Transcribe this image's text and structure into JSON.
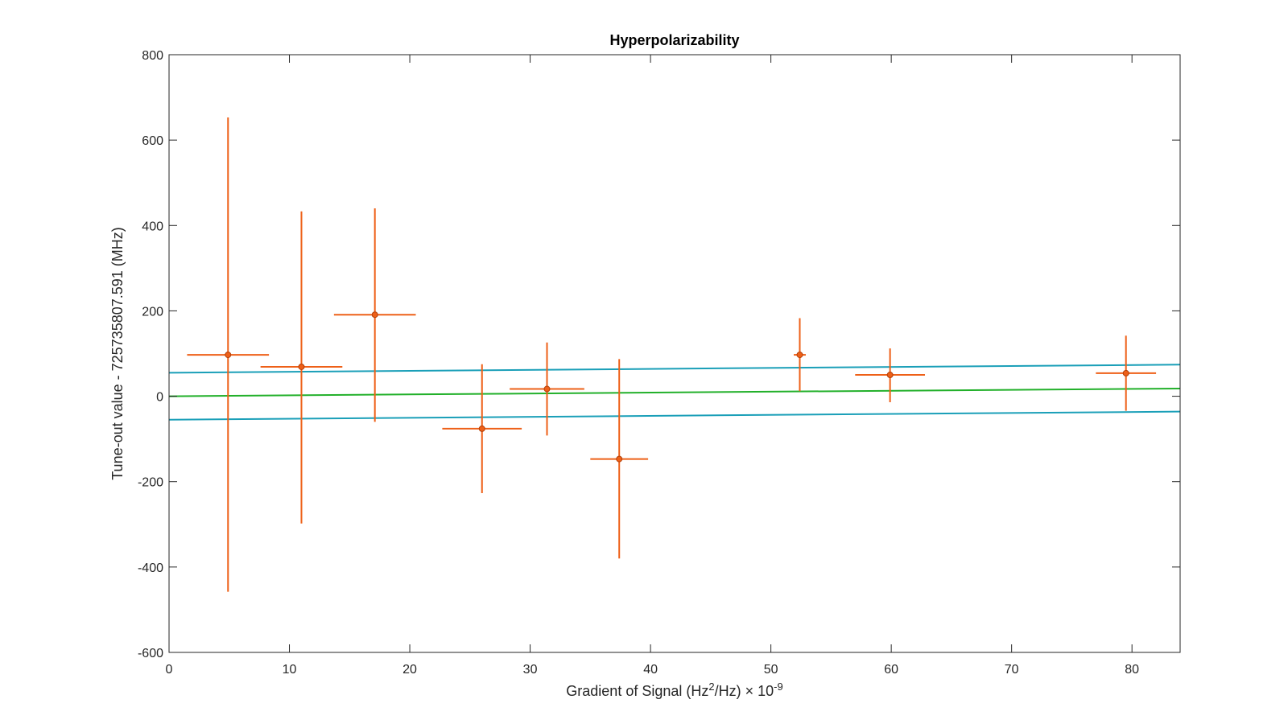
{
  "chart_data": {
    "type": "scatter",
    "title": "Hyperpolarizability",
    "xlabel": {
      "prefix": "Gradient of Signal (Hz",
      "superscript": "2",
      "middle": "/Hz) ",
      "times": "×",
      "power_base": " 10",
      "power_exponent": "-9"
    },
    "ylabel": "Tune-out value - 725735807.591 (MHz)",
    "xlim": [
      0,
      84
    ],
    "ylim": [
      -600,
      800
    ],
    "xticks": [
      0,
      10,
      20,
      30,
      40,
      50,
      60,
      70,
      80
    ],
    "yticks": [
      -600,
      -400,
      -200,
      0,
      200,
      400,
      600,
      800
    ],
    "grid": false,
    "colors": {
      "points": "#EE6018",
      "fit": "#22B02A",
      "bounds": "#1A9FB8",
      "axes": "#262626"
    },
    "points": [
      {
        "x": 4.9,
        "y": 97,
        "xerr": 3.4,
        "ylow": -458,
        "yhigh": 653
      },
      {
        "x": 11.0,
        "y": 69,
        "xerr": 3.4,
        "ylow": -298,
        "yhigh": 433
      },
      {
        "x": 17.1,
        "y": 191,
        "xerr": 3.4,
        "ylow": -60,
        "yhigh": 440
      },
      {
        "x": 26.0,
        "y": -76,
        "xerr": 3.3,
        "ylow": -227,
        "yhigh": 75
      },
      {
        "x": 31.4,
        "y": 17,
        "xerr": 3.1,
        "ylow": -92,
        "yhigh": 126
      },
      {
        "x": 37.4,
        "y": -147,
        "xerr": 2.4,
        "ylow": -380,
        "yhigh": 87
      },
      {
        "x": 52.4,
        "y": 97,
        "xerr": 0.5,
        "ylow": 12,
        "yhigh": 183
      },
      {
        "x": 59.9,
        "y": 50,
        "xerr": 2.9,
        "ylow": -14,
        "yhigh": 112
      },
      {
        "x": 79.5,
        "y": 54,
        "xerr": 2.5,
        "ylow": -34,
        "yhigh": 142
      }
    ],
    "lines": [
      {
        "x": [
          0,
          84
        ],
        "y": [
          0,
          18
        ],
        "color": "#22B02A"
      },
      {
        "x": [
          0,
          84
        ],
        "y": [
          55,
          74
        ],
        "color": "#1A9FB8"
      },
      {
        "x": [
          0,
          84
        ],
        "y": [
          -55,
          -36
        ],
        "color": "#1A9FB8"
      }
    ]
  }
}
